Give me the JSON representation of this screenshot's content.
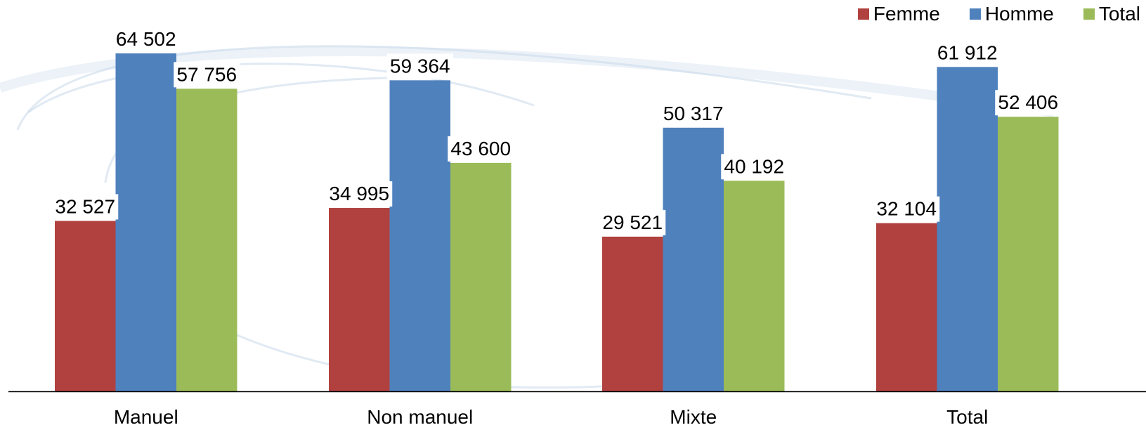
{
  "chart_data": {
    "type": "bar",
    "categories": [
      "Manuel",
      "Non manuel",
      "Mixte",
      "Total"
    ],
    "series": [
      {
        "name": "Femme",
        "color": "#b0413e",
        "values": [
          32527,
          34995,
          29521,
          32104
        ],
        "labels": [
          "32 527",
          "34 995",
          "29 521",
          "32 104"
        ]
      },
      {
        "name": "Homme",
        "color": "#4f81bd",
        "values": [
          64502,
          59364,
          50317,
          61912
        ],
        "labels": [
          "64 502",
          "59 364",
          "50 317",
          "61 912"
        ]
      },
      {
        "name": "Total",
        "color": "#9bbb59",
        "values": [
          57756,
          43600,
          40192,
          52406
        ],
        "labels": [
          "57 756",
          "43 600",
          "40 192",
          "52 406"
        ]
      }
    ],
    "title": "",
    "xlabel": "",
    "ylabel": "",
    "ylim": [
      0,
      64502
    ],
    "grid": false,
    "legend_position": "top-right"
  }
}
